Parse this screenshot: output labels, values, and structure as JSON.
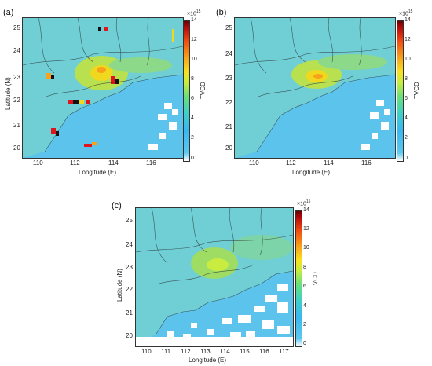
{
  "panels": [
    {
      "label": "(a)"
    },
    {
      "label": "(b)"
    },
    {
      "label": "(c)"
    }
  ],
  "axes": {
    "xlabel": "Longitude (E)",
    "ylabel": "Latitude (N)",
    "xticks_ab": [
      "110",
      "112",
      "114",
      "116"
    ],
    "xticks_c": [
      "110",
      "111",
      "112",
      "113",
      "114",
      "115",
      "116",
      "117"
    ],
    "yticks": [
      "25",
      "24",
      "23",
      "22",
      "21",
      "20"
    ]
  },
  "colorbar": {
    "label": "TVCD",
    "exponent": "×10",
    "exponent_power": "15",
    "ticks": [
      "14",
      "12",
      "10",
      "8",
      "6",
      "4",
      "2",
      "0"
    ],
    "range": [
      0,
      14
    ]
  },
  "colors": {
    "ocean": "#5cc3ec",
    "land_low": "#58c9e3",
    "hotspot": "#f7d020"
  }
}
